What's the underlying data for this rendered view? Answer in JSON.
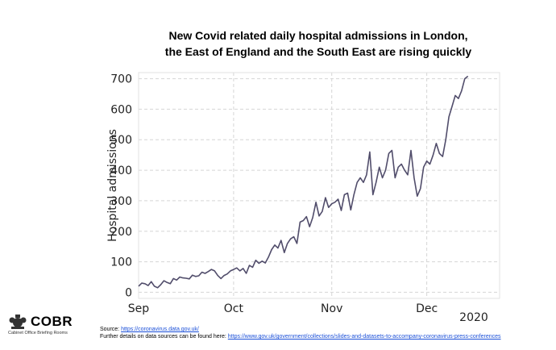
{
  "title_lines": [
    "New Covid related daily hospital admissions in London,",
    "the East of England and the South East are rising quickly"
  ],
  "footer": {
    "source_label": "Source:",
    "source_link": "https://coronavirus.data.gov.uk/",
    "details_label": "Further details on data sources can be found here:",
    "details_link": "https://www.gov.uk/government/collections/slides-and-datasets-to-accompany-coronavirus-press-conferences"
  },
  "logo": {
    "name": "COBR",
    "subtitle": "Cabinet Office Briefing Rooms",
    "icon": "royal-crest-icon"
  },
  "chart_data": {
    "type": "line",
    "title": "New Covid related daily hospital admissions in London, the East of England and the South East are rising quickly",
    "xlabel": "",
    "ylabel": "Hospital admissions",
    "ylim": [
      -20,
      720
    ],
    "yticks": [
      0,
      100,
      200,
      300,
      400,
      500,
      600,
      700
    ],
    "x_start": "2020-09-01",
    "x_end": "2020-12-24",
    "xticks": [
      {
        "date": "2020-09-01",
        "label": "Sep"
      },
      {
        "date": "2020-10-01",
        "label": "Oct"
      },
      {
        "date": "2020-11-01",
        "label": "Nov"
      },
      {
        "date": "2020-12-01",
        "label": "Dec"
      }
    ],
    "year_label": "2020",
    "grid": true,
    "line_color": "#514d6b",
    "series": [
      {
        "name": "",
        "points": [
          [
            "2020-09-01",
            20
          ],
          [
            "2020-09-02",
            30
          ],
          [
            "2020-09-03",
            28
          ],
          [
            "2020-09-04",
            22
          ],
          [
            "2020-09-05",
            35
          ],
          [
            "2020-09-06",
            20
          ],
          [
            "2020-09-07",
            15
          ],
          [
            "2020-09-08",
            25
          ],
          [
            "2020-09-09",
            38
          ],
          [
            "2020-09-10",
            32
          ],
          [
            "2020-09-11",
            28
          ],
          [
            "2020-09-12",
            45
          ],
          [
            "2020-09-13",
            40
          ],
          [
            "2020-09-14",
            50
          ],
          [
            "2020-09-15",
            47
          ],
          [
            "2020-09-16",
            46
          ],
          [
            "2020-09-17",
            44
          ],
          [
            "2020-09-18",
            56
          ],
          [
            "2020-09-19",
            52
          ],
          [
            "2020-09-20",
            54
          ],
          [
            "2020-09-21",
            66
          ],
          [
            "2020-09-22",
            62
          ],
          [
            "2020-09-23",
            68
          ],
          [
            "2020-09-24",
            75
          ],
          [
            "2020-09-25",
            70
          ],
          [
            "2020-09-26",
            55
          ],
          [
            "2020-09-27",
            45
          ],
          [
            "2020-09-28",
            55
          ],
          [
            "2020-09-29",
            60
          ],
          [
            "2020-09-30",
            70
          ],
          [
            "2020-10-01",
            75
          ],
          [
            "2020-10-02",
            80
          ],
          [
            "2020-10-03",
            70
          ],
          [
            "2020-10-04",
            78
          ],
          [
            "2020-10-05",
            62
          ],
          [
            "2020-10-06",
            88
          ],
          [
            "2020-10-07",
            82
          ],
          [
            "2020-10-08",
            105
          ],
          [
            "2020-10-09",
            95
          ],
          [
            "2020-10-10",
            102
          ],
          [
            "2020-10-11",
            96
          ],
          [
            "2020-10-12",
            115
          ],
          [
            "2020-10-13",
            140
          ],
          [
            "2020-10-14",
            155
          ],
          [
            "2020-10-15",
            145
          ],
          [
            "2020-10-16",
            170
          ],
          [
            "2020-10-17",
            130
          ],
          [
            "2020-10-18",
            160
          ],
          [
            "2020-10-19",
            175
          ],
          [
            "2020-10-20",
            182
          ],
          [
            "2020-10-21",
            160
          ],
          [
            "2020-10-22",
            230
          ],
          [
            "2020-10-23",
            235
          ],
          [
            "2020-10-24",
            248
          ],
          [
            "2020-10-25",
            215
          ],
          [
            "2020-10-26",
            245
          ],
          [
            "2020-10-27",
            295
          ],
          [
            "2020-10-28",
            250
          ],
          [
            "2020-10-29",
            265
          ],
          [
            "2020-10-30",
            310
          ],
          [
            "2020-10-31",
            278
          ],
          [
            "2020-11-01",
            290
          ],
          [
            "2020-11-02",
            295
          ],
          [
            "2020-11-03",
            305
          ],
          [
            "2020-11-04",
            268
          ],
          [
            "2020-11-05",
            320
          ],
          [
            "2020-11-06",
            325
          ],
          [
            "2020-11-07",
            270
          ],
          [
            "2020-11-08",
            320
          ],
          [
            "2020-11-09",
            360
          ],
          [
            "2020-11-10",
            375
          ],
          [
            "2020-11-11",
            360
          ],
          [
            "2020-11-12",
            385
          ],
          [
            "2020-11-13",
            460
          ],
          [
            "2020-11-14",
            320
          ],
          [
            "2020-11-15",
            360
          ],
          [
            "2020-11-16",
            410
          ],
          [
            "2020-11-17",
            375
          ],
          [
            "2020-11-18",
            400
          ],
          [
            "2020-11-19",
            455
          ],
          [
            "2020-11-20",
            465
          ],
          [
            "2020-11-21",
            375
          ],
          [
            "2020-11-22",
            410
          ],
          [
            "2020-11-23",
            420
          ],
          [
            "2020-11-24",
            400
          ],
          [
            "2020-11-25",
            385
          ],
          [
            "2020-11-26",
            465
          ],
          [
            "2020-11-27",
            375
          ],
          [
            "2020-11-28",
            315
          ],
          [
            "2020-11-29",
            340
          ],
          [
            "2020-11-30",
            410
          ],
          [
            "2020-12-01",
            430
          ],
          [
            "2020-12-02",
            420
          ],
          [
            "2020-12-03",
            450
          ],
          [
            "2020-12-04",
            488
          ],
          [
            "2020-12-05",
            455
          ],
          [
            "2020-12-06",
            445
          ],
          [
            "2020-12-07",
            500
          ],
          [
            "2020-12-08",
            575
          ],
          [
            "2020-12-09",
            610
          ],
          [
            "2020-12-10",
            645
          ],
          [
            "2020-12-11",
            635
          ],
          [
            "2020-12-12",
            660
          ],
          [
            "2020-12-13",
            700
          ],
          [
            "2020-12-14",
            708
          ]
        ]
      }
    ]
  }
}
